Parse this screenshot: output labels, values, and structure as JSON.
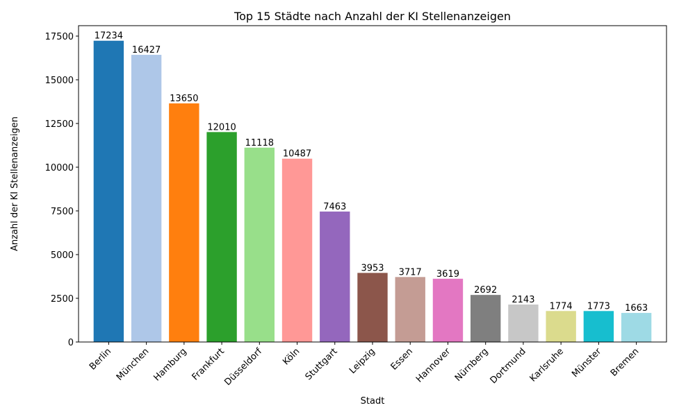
{
  "chart_data": {
    "type": "bar",
    "title": "Top 15 Städte nach Anzahl der KI Stellenanzeigen",
    "xlabel": "Stadt",
    "ylabel": "Anzahl der KI Stellenanzeigen",
    "categories": [
      "Berlin",
      "München",
      "Hamburg",
      "Frankfurt",
      "Düsseldorf",
      "Köln",
      "Stuttgart",
      "Leipzig",
      "Essen",
      "Hannover",
      "Nürnberg",
      "Dortmund",
      "Karlsruhe",
      "Münster",
      "Bremen"
    ],
    "values": [
      17234,
      16427,
      13650,
      12010,
      11118,
      10487,
      7463,
      3953,
      3717,
      3619,
      2692,
      2143,
      1774,
      1773,
      1663
    ],
    "colors": [
      "#1f77b4",
      "#aec7e8",
      "#ff7f0e",
      "#2ca02c",
      "#98df8a",
      "#ff9896",
      "#9467bd",
      "#8c564b",
      "#c49c94",
      "#e377c2",
      "#7f7f7f",
      "#c7c7c7",
      "#dbdb8d",
      "#17becf",
      "#9edae5"
    ],
    "yticks": [
      0,
      2500,
      5000,
      7500,
      10000,
      12500,
      15000,
      17500
    ],
    "ylim": [
      0,
      18096
    ],
    "grid": false,
    "show_data_labels": true
  }
}
